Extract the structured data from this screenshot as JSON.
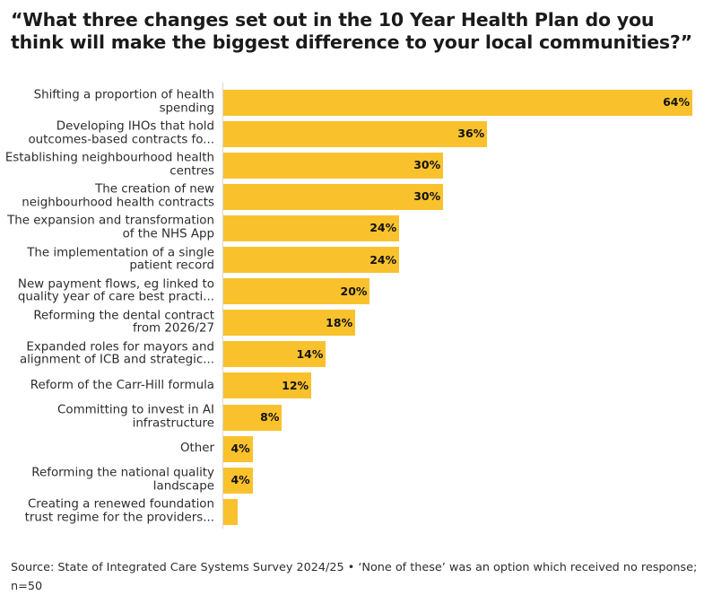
{
  "title": "“What three changes set out in the 10 Year Health Plan do you think will make the biggest difference to your local communities?”",
  "source": "Source: State of Integrated Care Systems Survey 2024/25 • ‘None of these’ was an option which received no response; n=50",
  "colors": {
    "bar": "#f9c22d",
    "text": "#2d2d2d"
  },
  "chart_data": {
    "type": "bar",
    "orientation": "horizontal",
    "categories": [
      "Shifting a proportion of health spending",
      "Developing IHOs that hold outcomes-based contracts fo...",
      "Establishing neighbourhood health centres",
      "The creation of new neighbourhood health contracts",
      "The expansion and transformation of the NHS App",
      "The implementation of a single patient record",
      "New payment flows, eg linked to quality year of care best practi...",
      "Reforming the dental contract from 2026/27",
      "Expanded roles for mayors and alignment of ICB and strategic...",
      "Reform of the Carr-Hill formula",
      "Committing to invest in AI infrastructure",
      "Other",
      "Reforming the national quality landscape",
      "Creating a renewed foundation trust regime for the providers..."
    ],
    "values": [
      64,
      36,
      30,
      30,
      24,
      24,
      20,
      18,
      14,
      12,
      8,
      4,
      4,
      2
    ],
    "value_labels": [
      "64%",
      "36%",
      "30%",
      "30%",
      "24%",
      "24%",
      "20%",
      "18%",
      "14%",
      "12%",
      "8%",
      "4%",
      "4%",
      ""
    ],
    "xlim": [
      0,
      64
    ],
    "grid": false,
    "legend": "none"
  }
}
